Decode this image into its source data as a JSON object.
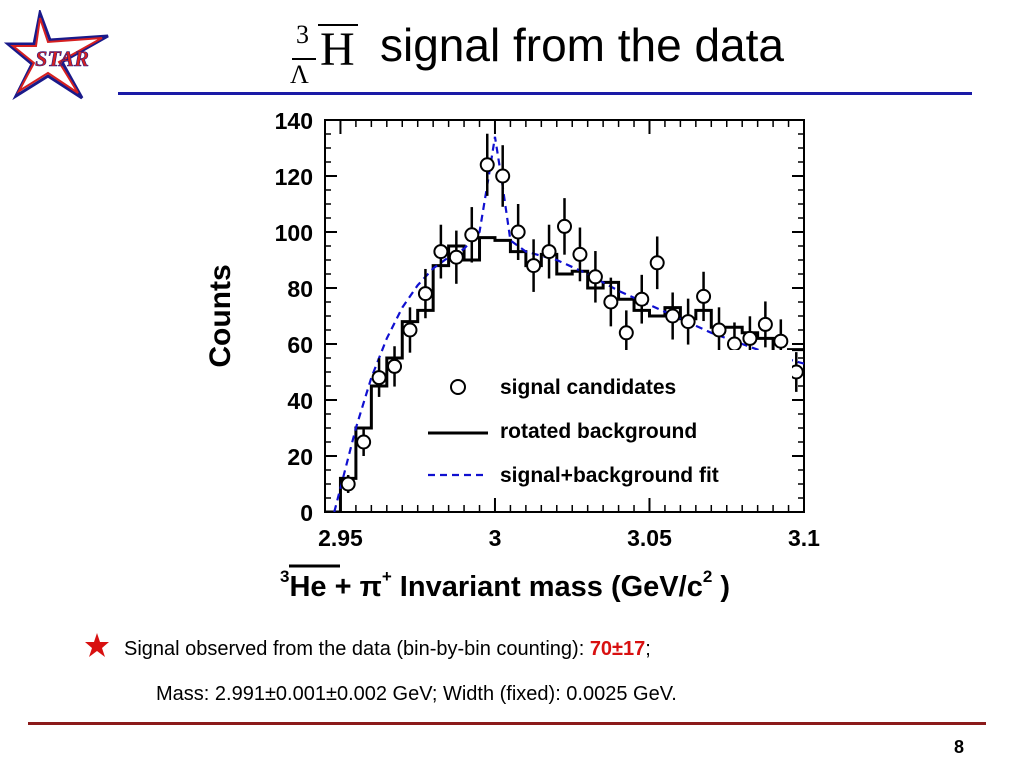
{
  "slide": {
    "logo_text": "STAR",
    "title": {
      "math_super": "3",
      "math_sub": "Λ",
      "math_symbol": "H",
      "text": "signal from the data"
    },
    "bullet": {
      "prefix": "Signal observed from the data (bin-by-bin counting): ",
      "value": "70±17",
      "suffix": ";"
    },
    "mass_line": "Mass: 2.991±0.001±0.002 GeV; Width (fixed): 0.0025 GeV.",
    "page_number": "8",
    "colors": {
      "top_rule": "#1a1aa6",
      "bottom_rule": "#8b1a1a",
      "highlight": "#d81010",
      "fit_line": "#1010d0",
      "star_logo": "#d62020",
      "star_outline": "#1a1a8a"
    }
  },
  "chart_data": {
    "type": "scatter",
    "ylabel": "Counts",
    "xlabel": {
      "mass_number": "3",
      "nucleus": "He",
      "plus": " + π",
      "charge": "+",
      "text": " Invariant mass (GeV/c",
      "power": "2",
      "close": " )"
    },
    "xlim": [
      2.945,
      3.1
    ],
    "ylim": [
      0,
      140
    ],
    "xticks": [
      2.95,
      3.0,
      3.05,
      3.1
    ],
    "xtick_labels": [
      "2.95",
      "3",
      "3.05",
      "3.1"
    ],
    "yticks": [
      0,
      20,
      40,
      60,
      80,
      100,
      120,
      140
    ],
    "ytick_labels": [
      "0",
      "20",
      "40",
      "60",
      "80",
      "100",
      "120",
      "140"
    ],
    "legend_position": "bottom-right",
    "legend": [
      "signal candidates",
      "rotated background",
      "signal+background fit"
    ],
    "series": [
      {
        "name": "signal candidates",
        "kind": "points",
        "x": [
          2.9525,
          2.9575,
          2.9625,
          2.9675,
          2.9725,
          2.9775,
          2.9825,
          2.9875,
          2.9925,
          2.9975,
          3.0025,
          3.0075,
          3.0125,
          3.0175,
          3.0225,
          3.0275,
          3.0325,
          3.0375,
          3.0425,
          3.0475,
          3.0525,
          3.0575,
          3.0625,
          3.0675,
          3.0725,
          3.0775,
          3.0825,
          3.0875,
          3.0925,
          3.0975
        ],
        "y": [
          10,
          25,
          48,
          52,
          65,
          78,
          93,
          91,
          99,
          124,
          120,
          100,
          88,
          93,
          102,
          92,
          84,
          75,
          64,
          76,
          89,
          70,
          68,
          77,
          65,
          60,
          62,
          67,
          61,
          50
        ],
        "yerr": [
          3.2,
          5,
          6.9,
          7.2,
          8.1,
          8.8,
          9.6,
          9.5,
          9.9,
          11.1,
          11,
          10,
          9.4,
          9.6,
          10.1,
          9.6,
          9.2,
          8.7,
          8,
          8.7,
          9.4,
          8.4,
          8.2,
          8.8,
          8.1,
          7.7,
          7.9,
          8.2,
          7.8,
          7.1
        ]
      },
      {
        "name": "rotated background",
        "kind": "step",
        "x": [
          2.945,
          2.95,
          2.955,
          2.96,
          2.965,
          2.97,
          2.975,
          2.98,
          2.985,
          2.99,
          2.995,
          3.0,
          3.005,
          3.01,
          3.015,
          3.02,
          3.025,
          3.03,
          3.035,
          3.04,
          3.045,
          3.05,
          3.055,
          3.06,
          3.065,
          3.07,
          3.075,
          3.08,
          3.085,
          3.09,
          3.095,
          3.1
        ],
        "y": [
          0,
          12,
          30,
          45,
          55,
          68,
          72,
          88,
          95,
          90,
          98,
          97,
          93,
          88,
          92,
          85,
          86,
          80,
          82,
          76,
          72,
          70,
          73,
          69,
          72,
          66,
          66,
          64,
          62,
          55,
          58,
          58
        ]
      },
      {
        "name": "signal+background fit",
        "kind": "dashed-line",
        "x": [
          2.948,
          2.955,
          2.96,
          2.965,
          2.97,
          2.975,
          2.98,
          2.985,
          2.99,
          2.995,
          2.998,
          3.0,
          3.002,
          3.005,
          3.01,
          3.02,
          3.03,
          3.04,
          3.05,
          3.06,
          3.07,
          3.08,
          3.09,
          3.1
        ],
        "y": [
          0,
          30,
          48,
          62,
          73,
          81,
          87,
          91,
          94,
          100,
          120,
          134,
          120,
          97,
          93,
          90,
          85,
          79,
          74,
          69,
          64,
          60,
          56,
          53
        ]
      }
    ]
  }
}
